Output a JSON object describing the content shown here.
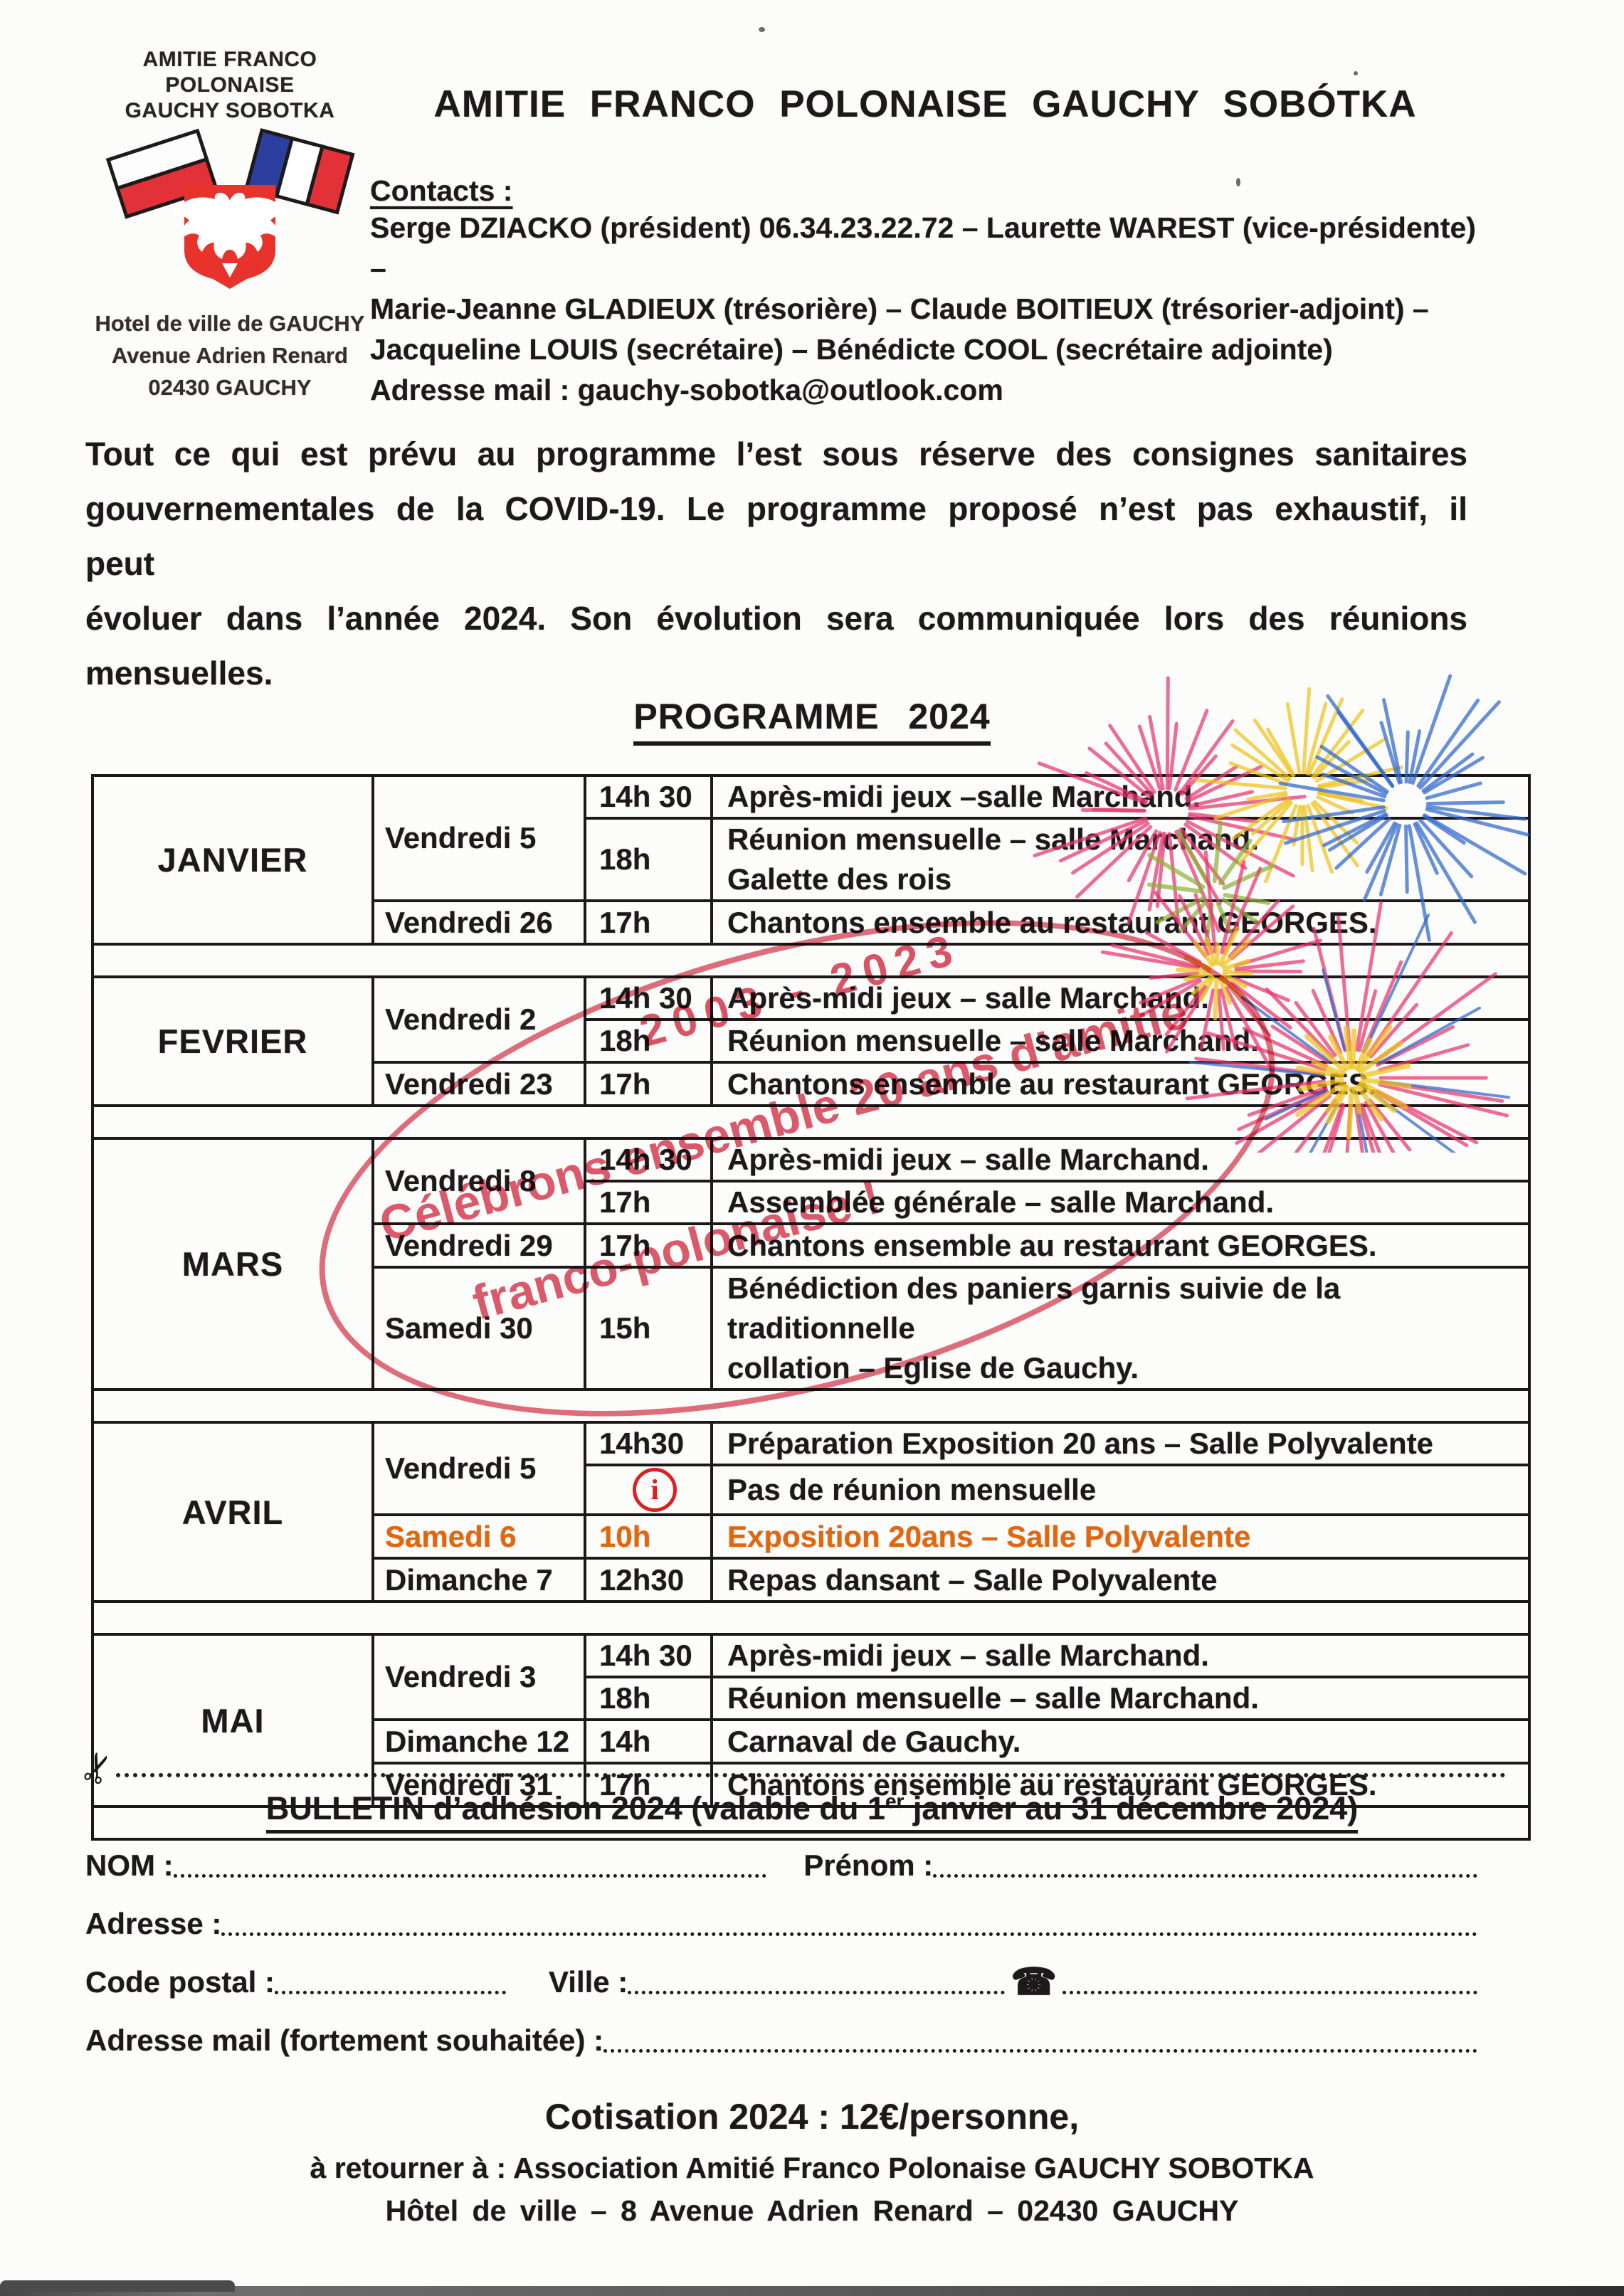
{
  "logo": {
    "org_line1": "AMITIE FRANCO POLONAISE",
    "org_line2": "GAUCHY SOBOTKA",
    "address_line1": "Hotel de ville de GAUCHY",
    "address_line2": "Avenue Adrien Renard",
    "address_line3": "02430 GAUCHY"
  },
  "header": {
    "title": "AMITIE FRANCO POLONAISE GAUCHY SOBÓTKA",
    "contacts_label": "Contacts :",
    "contact_lines": [
      "Serge DZIACKO (président) 06.34.23.22.72 – Laurette WAREST (vice-présidente) –",
      "Marie-Jeanne GLADIEUX (trésorière) – Claude BOITIEUX (trésorier-adjoint) –",
      "Jacqueline LOUIS (secrétaire) – Bénédicte COOL (secrétaire adjointe)",
      "Adresse mail : gauchy-sobotka@outlook.com"
    ]
  },
  "notice_lines": [
    "Tout ce qui est prévu au programme l’est sous réserve des consignes sanitaires",
    "gouvernementales de la COVID-19. Le programme proposé n’est pas exhaustif, il peut",
    "évoluer dans l’année 2024. Son évolution sera communiquée lors des réunions",
    "mensuelles."
  ],
  "programme": {
    "title": "PROGRAMME 2024",
    "months": [
      {
        "month": "JANVIER",
        "rows": [
          {
            "day": "Vendredi 5",
            "day_rowspan": 2,
            "time": "14h 30",
            "lines": [
              "Après-midi jeux –salle Marchand."
            ]
          },
          {
            "time": "18h",
            "lines": [
              "Réunion mensuelle – salle Marchand.",
              "Galette des rois"
            ]
          },
          {
            "day": "Vendredi 26",
            "time": "17h",
            "lines": [
              "Chantons ensemble au restaurant GEORGES."
            ]
          }
        ]
      },
      {
        "month": "FEVRIER",
        "rows": [
          {
            "day": "Vendredi 2",
            "day_rowspan": 2,
            "time": "14h 30",
            "lines": [
              "Après-midi jeux – salle Marchand."
            ]
          },
          {
            "time": "18h",
            "lines": [
              "Réunion mensuelle – salle Marchand."
            ]
          },
          {
            "day": "Vendredi 23",
            "time": "17h",
            "lines": [
              "Chantons ensemble au restaurant GEORGES."
            ]
          }
        ]
      },
      {
        "month": "MARS",
        "rows": [
          {
            "day": "Vendredi 8",
            "day_rowspan": 2,
            "time": "14h 30",
            "lines": [
              "Après-midi jeux – salle Marchand."
            ]
          },
          {
            "time": "17h",
            "lines": [
              "Assemblée générale – salle Marchand."
            ]
          },
          {
            "day": "Vendredi 29",
            "time": "17h",
            "lines": [
              "Chantons ensemble au restaurant GEORGES."
            ]
          },
          {
            "day": "Samedi 30",
            "time": "15h",
            "lines": [
              "Bénédiction des paniers garnis suivie de la traditionnelle",
              "collation – Eglise de Gauchy."
            ]
          }
        ]
      },
      {
        "month": "AVRIL",
        "rows": [
          {
            "day": "Vendredi 5",
            "day_rowspan": 2,
            "time": "14h30",
            "lines": [
              "Préparation Exposition 20 ans – Salle Polyvalente"
            ]
          },
          {
            "time_icon": true,
            "lines": [
              "Pas de réunion mensuelle"
            ]
          },
          {
            "day": "Samedi 6",
            "time": "10h",
            "lines": [
              "Exposition 20ans – Salle Polyvalente"
            ],
            "orange": true
          },
          {
            "day": "Dimanche 7",
            "time": "12h30",
            "lines": [
              "Repas dansant – Salle Polyvalente"
            ]
          }
        ]
      },
      {
        "month": "MAI",
        "rows": [
          {
            "day": "Vendredi 3",
            "day_rowspan": 2,
            "time": "14h 30",
            "lines": [
              "Après-midi jeux – salle Marchand."
            ]
          },
          {
            "time": "18h",
            "lines": [
              "Réunion mensuelle – salle Marchand."
            ]
          },
          {
            "day": "Dimanche 12",
            "time": "14h",
            "lines": [
              "Carnaval de Gauchy."
            ]
          },
          {
            "day": "Vendredi 31",
            "time": "17h",
            "lines": [
              "Chantons ensemble au restaurant GEORGES."
            ]
          }
        ]
      }
    ]
  },
  "stamp": {
    "years": "2003 - 2023",
    "line1": "Célébrons ensemble 20 ans d’amitié",
    "line2": "franco-polonaise !"
  },
  "bulletin": {
    "title_prefix": "BULLETIN d’adhésion 2024 (valable du 1",
    "title_sup": "er",
    "title_suffix": " janvier au 31 décembre 2024)",
    "nom_label": "NOM :",
    "prenom_label": "Prénom :",
    "adresse_label": "Adresse :",
    "code_postal_label": "Code postal :",
    "ville_label": "Ville :",
    "mail_label": "Adresse mail (fortement souhaitée) :",
    "cotisation": "Cotisation 2024 : 12€/personne,",
    "return_line": "à retourner à : Association Amitié Franco Polonaise GAUCHY SOBOTKA",
    "address_line": "Hôtel de ville – 8 Avenue Adrien Renard – 02430 GAUCHY"
  },
  "icons": {
    "scissors": "✂",
    "phone": "☎",
    "info": "i"
  },
  "colors": {
    "orange": "#e5660a",
    "stamp_red": "#d6364c",
    "info_red": "#de1f1f",
    "polish_red": "#e23137",
    "french_blue": "#2c3e9e"
  }
}
